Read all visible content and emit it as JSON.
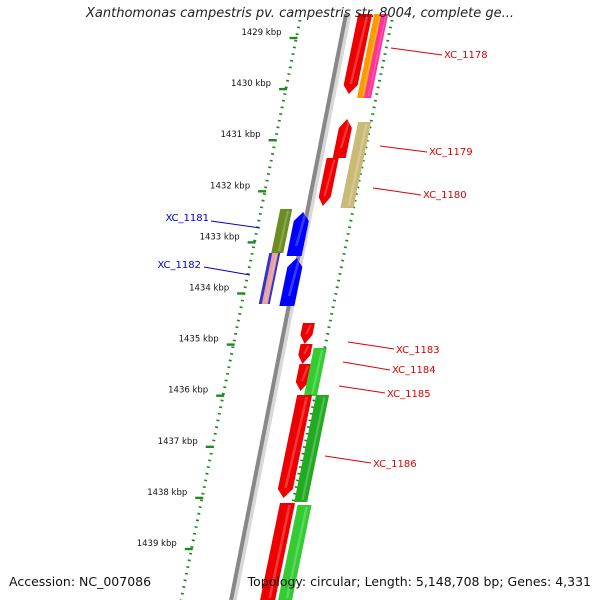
{
  "title": "Xanthomonas campestris pv. campestris str. 8004, complete ge...",
  "footer": {
    "accession": "Accession: NC_007086",
    "info": "Topology: circular; Length: 5,148,708 bp; Genes: 4,331"
  },
  "colors": {
    "backbone": "#888888",
    "tick": "#1e8a1e",
    "label_forward": "#dd0000",
    "label_reverse": "#0000cc"
  },
  "scale_ticks": [
    {
      "label": "1429 kbp"
    },
    {
      "label": "1430 kbp"
    },
    {
      "label": "1431 kbp"
    },
    {
      "label": "1432 kbp"
    },
    {
      "label": "1433 kbp"
    },
    {
      "label": "1434 kbp"
    },
    {
      "label": "1435 kbp"
    },
    {
      "label": "1436 kbp"
    },
    {
      "label": "1437 kbp"
    },
    {
      "label": "1438 kbp"
    },
    {
      "label": "1439 kbp"
    }
  ],
  "gene_labels": [
    {
      "text": "XC_1178",
      "color": "#dd0000"
    },
    {
      "text": "XC_1179",
      "color": "#dd0000"
    },
    {
      "text": "XC_1180",
      "color": "#dd0000"
    },
    {
      "text": "XC_1181",
      "color": "#0000cc"
    },
    {
      "text": "XC_1182",
      "color": "#0000cc"
    },
    {
      "text": "XC_1183",
      "color": "#dd0000"
    },
    {
      "text": "XC_1184",
      "color": "#dd0000"
    },
    {
      "text": "XC_1185",
      "color": "#dd0000"
    },
    {
      "text": "XC_1186",
      "color": "#dd0000"
    }
  ]
}
